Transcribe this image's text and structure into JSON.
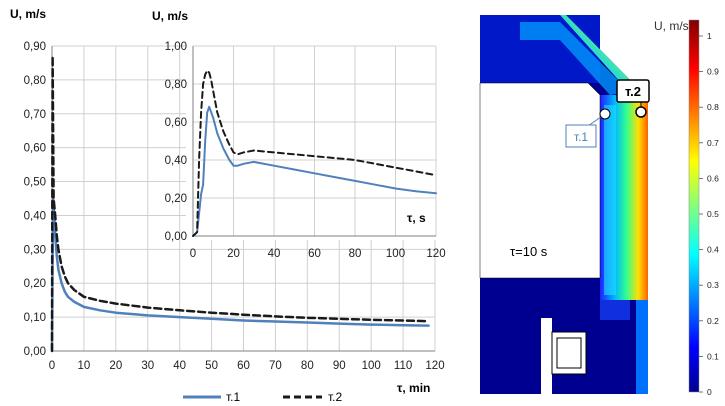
{
  "chart_data": [
    {
      "type": "line",
      "ylabel": "U, m/s",
      "xlabel": "τ, min",
      "xlim": [
        0,
        120
      ],
      "ylim": [
        0,
        0.9
      ],
      "xticks": [
        "0",
        "10",
        "20",
        "30",
        "40",
        "50",
        "60",
        "70",
        "80",
        "90",
        "100",
        "110",
        "120"
      ],
      "yticks": [
        "0,00",
        "0,10",
        "0,20",
        "0,30",
        "0,40",
        "0,50",
        "0,60",
        "0,70",
        "0,80",
        "0,90"
      ],
      "grid": true,
      "legend_position": "bottom",
      "series": [
        {
          "name": "т.1",
          "style": "solid",
          "color": "#4f81bd",
          "x": [
            0,
            0.3,
            0.7,
            1,
            1.5,
            2,
            3,
            4,
            5,
            7,
            10,
            15,
            20,
            30,
            40,
            50,
            60,
            70,
            80,
            90,
            100,
            110,
            118
          ],
          "y": [
            0,
            0.46,
            0.4,
            0.34,
            0.28,
            0.24,
            0.2,
            0.175,
            0.16,
            0.145,
            0.13,
            0.12,
            0.113,
            0.105,
            0.1,
            0.095,
            0.09,
            0.087,
            0.084,
            0.081,
            0.078,
            0.076,
            0.075
          ]
        },
        {
          "name": "т.2",
          "style": "dashed",
          "color": "#1a1a1a",
          "x": [
            0,
            0.2,
            0.5,
            1,
            1.5,
            2,
            3,
            4,
            5,
            7,
            10,
            15,
            20,
            30,
            40,
            50,
            60,
            70,
            80,
            90,
            100,
            110,
            118
          ],
          "y": [
            0,
            0.87,
            0.45,
            0.4,
            0.34,
            0.3,
            0.25,
            0.22,
            0.2,
            0.18,
            0.16,
            0.148,
            0.14,
            0.128,
            0.12,
            0.113,
            0.107,
            0.102,
            0.098,
            0.095,
            0.092,
            0.09,
            0.088
          ]
        }
      ]
    },
    {
      "type": "line",
      "ylabel": "U, m/s",
      "xlabel": "τ, s",
      "xlim": [
        0,
        120
      ],
      "ylim": [
        0,
        1.0
      ],
      "xticks": [
        "0",
        "20",
        "40",
        "60",
        "80",
        "100",
        "120"
      ],
      "yticks": [
        "0,00",
        "0,20",
        "0,40",
        "0,60",
        "0,80",
        "1,00"
      ],
      "grid": true,
      "series": [
        {
          "name": "т.1",
          "style": "solid",
          "color": "#4f81bd",
          "x": [
            0,
            2,
            4,
            5,
            6,
            7,
            8,
            10,
            12,
            15,
            18,
            20,
            22,
            25,
            30,
            40,
            50,
            60,
            70,
            80,
            90,
            100,
            110,
            120
          ],
          "y": [
            0,
            0.02,
            0.22,
            0.27,
            0.5,
            0.65,
            0.68,
            0.62,
            0.54,
            0.46,
            0.4,
            0.37,
            0.37,
            0.38,
            0.39,
            0.37,
            0.35,
            0.33,
            0.31,
            0.29,
            0.27,
            0.25,
            0.235,
            0.225
          ]
        },
        {
          "name": "т.2",
          "style": "dashed",
          "color": "#1a1a1a",
          "x": [
            0,
            2,
            3,
            4,
            5,
            6,
            7,
            8,
            9,
            10,
            12,
            15,
            18,
            20,
            22,
            25,
            30,
            40,
            50,
            60,
            70,
            80,
            90,
            100,
            110,
            120
          ],
          "y": [
            0,
            0.02,
            0.4,
            0.65,
            0.8,
            0.85,
            0.87,
            0.86,
            0.82,
            0.76,
            0.65,
            0.55,
            0.48,
            0.44,
            0.43,
            0.44,
            0.45,
            0.44,
            0.43,
            0.42,
            0.41,
            0.4,
            0.38,
            0.36,
            0.34,
            0.32
          ]
        }
      ]
    },
    {
      "type": "heatmap",
      "title": "U, m/s",
      "colorbar_ticks": [
        "1",
        "0.9",
        "0.8",
        "0.7",
        "0.6",
        "0.5",
        "0.4",
        "0.3",
        "0.2",
        "0.1",
        "0"
      ],
      "colorbar_range": [
        0,
        1
      ],
      "annotations": [
        {
          "text": "т.1",
          "color": "#4f81bd"
        },
        {
          "text": "т.2",
          "color": "#000000"
        },
        {
          "text": "τ=10 s",
          "color": "#000000"
        }
      ]
    }
  ]
}
